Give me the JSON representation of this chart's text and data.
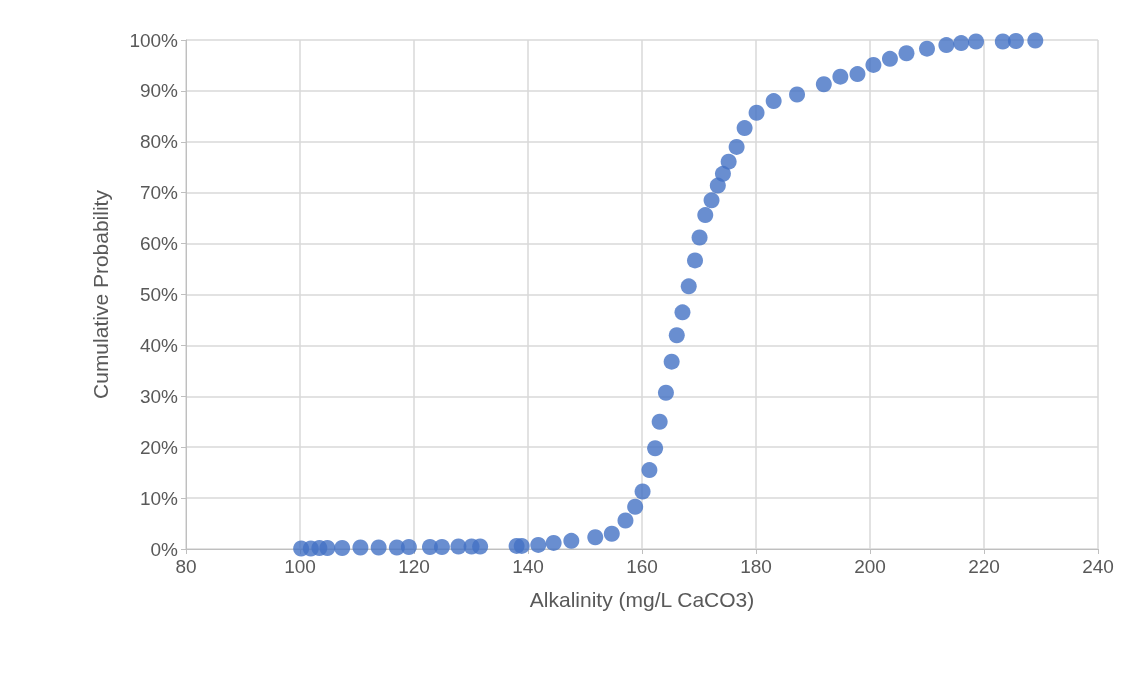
{
  "chart_data": {
    "type": "scatter",
    "xlabel": "Alkalinity (mg/L CaCO3)",
    "ylabel": "Cumulative Probability",
    "x": [
      100.2,
      101.9,
      103.4,
      104.8,
      107.4,
      110.6,
      113.8,
      117.0,
      119.1,
      122.8,
      124.9,
      127.8,
      130.1,
      131.6,
      138.0,
      138.9,
      141.8,
      144.5,
      147.6,
      151.8,
      154.7,
      157.1,
      158.8,
      160.1,
      161.3,
      162.3,
      163.1,
      164.2,
      165.2,
      166.1,
      167.1,
      168.2,
      169.3,
      170.1,
      171.1,
      172.2,
      173.3,
      174.2,
      175.2,
      176.6,
      178.0,
      180.1,
      183.1,
      187.2,
      191.9,
      194.8,
      197.8,
      200.6,
      203.5,
      206.4,
      210.0,
      213.4,
      216.0,
      218.6,
      223.3,
      225.6,
      229.0
    ],
    "series": [
      {
        "color": "#4472c4",
        "values": [
          0.1,
          0.1,
          0.2,
          0.2,
          0.2,
          0.3,
          0.3,
          0.3,
          0.4,
          0.4,
          0.4,
          0.5,
          0.5,
          0.5,
          0.6,
          0.6,
          0.8,
          1.2,
          1.6,
          2.3,
          3.0,
          5.6,
          8.3,
          11.3,
          15.5,
          19.8,
          25.0,
          30.7,
          36.8,
          42.0,
          46.5,
          51.6,
          56.7,
          61.2,
          65.6,
          68.5,
          71.4,
          73.7,
          76.1,
          79.0,
          82.7,
          85.7,
          88.0,
          89.3,
          91.3,
          92.8,
          93.3,
          95.1,
          96.3,
          97.4,
          98.3,
          99.0,
          99.4,
          99.7,
          99.7,
          99.8,
          99.9
        ]
      }
    ],
    "xlim": [
      80,
      240
    ],
    "xticks": [
      80,
      100,
      120,
      140,
      160,
      180,
      200,
      220,
      240
    ],
    "ylim": [
      0,
      100
    ],
    "yticks": [
      {
        "value": 0,
        "label": "0%"
      },
      {
        "value": 10,
        "label": "10%"
      },
      {
        "value": 20,
        "label": "20%"
      },
      {
        "value": 30,
        "label": "30%"
      },
      {
        "value": 40,
        "label": "40%"
      },
      {
        "value": 50,
        "label": "50%"
      },
      {
        "value": 60,
        "label": "60%"
      },
      {
        "value": 70,
        "label": "70%"
      },
      {
        "value": 80,
        "label": "80%"
      },
      {
        "value": 90,
        "label": "90%"
      },
      {
        "value": 100,
        "label": "100%"
      }
    ],
    "grid": true,
    "marker": "circle"
  }
}
